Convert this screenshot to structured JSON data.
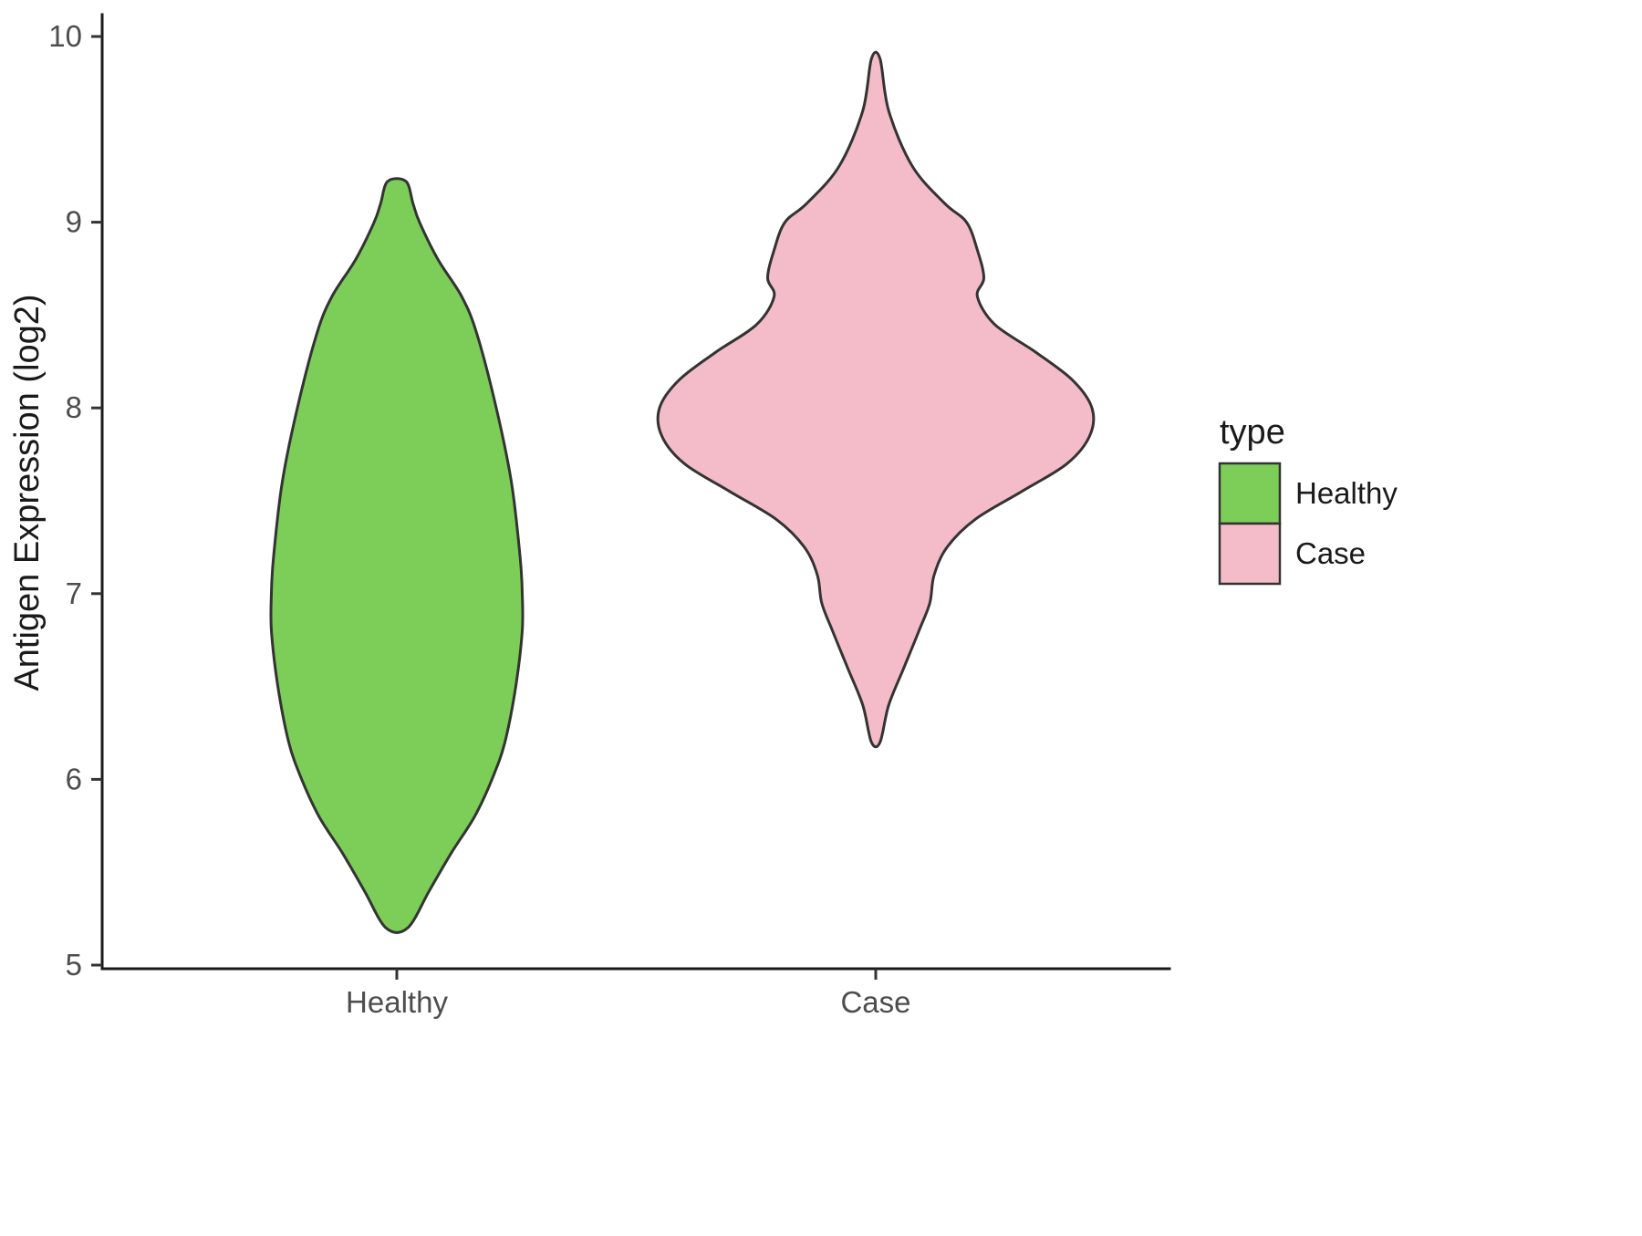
{
  "chart_data": {
    "type": "violin",
    "title": "",
    "xlabel": "",
    "ylabel": "Antigen Expression (log2)",
    "ylim": [
      5,
      10
    ],
    "yticks": [
      5,
      6,
      7,
      8,
      9,
      10
    ],
    "categories": [
      "Healthy",
      "Case"
    ],
    "grid": false,
    "legend_position": "right",
    "legend": {
      "title": "type",
      "entries": [
        {
          "label": "Healthy",
          "color": "#7CCE58"
        },
        {
          "label": "Case",
          "color": "#F4BCC8"
        }
      ]
    },
    "series": [
      {
        "name": "Healthy",
        "color": "#7CCE58",
        "value_range": [
          5.2,
          9.22
        ],
        "profile": [
          [
            5.2,
            0.05
          ],
          [
            5.4,
            0.15
          ],
          [
            5.6,
            0.25
          ],
          [
            5.8,
            0.36
          ],
          [
            6.0,
            0.44
          ],
          [
            6.2,
            0.5
          ],
          [
            6.5,
            0.55
          ],
          [
            6.8,
            0.58
          ],
          [
            7.0,
            0.58
          ],
          [
            7.2,
            0.57
          ],
          [
            7.6,
            0.53
          ],
          [
            8.0,
            0.46
          ],
          [
            8.4,
            0.37
          ],
          [
            8.6,
            0.3
          ],
          [
            8.8,
            0.19
          ],
          [
            9.0,
            0.105
          ],
          [
            9.1,
            0.075
          ],
          [
            9.22,
            0.042
          ]
        ]
      },
      {
        "name": "Case",
        "color": "#F4BCC8",
        "value_range": [
          6.2,
          9.88
        ],
        "profile": [
          [
            6.2,
            0.02
          ],
          [
            6.4,
            0.06
          ],
          [
            6.6,
            0.13
          ],
          [
            6.8,
            0.2
          ],
          [
            6.95,
            0.25
          ],
          [
            7.1,
            0.27
          ],
          [
            7.25,
            0.33
          ],
          [
            7.4,
            0.46
          ],
          [
            7.55,
            0.675
          ],
          [
            7.7,
            0.885
          ],
          [
            7.85,
            0.99
          ],
          [
            8.0,
            1.0
          ],
          [
            8.15,
            0.91
          ],
          [
            8.3,
            0.74
          ],
          [
            8.45,
            0.55
          ],
          [
            8.6,
            0.47
          ],
          [
            8.7,
            0.5
          ],
          [
            8.85,
            0.47
          ],
          [
            9.0,
            0.42
          ],
          [
            9.1,
            0.32
          ],
          [
            9.3,
            0.17
          ],
          [
            9.6,
            0.06
          ],
          [
            9.88,
            0.02
          ]
        ]
      }
    ]
  }
}
